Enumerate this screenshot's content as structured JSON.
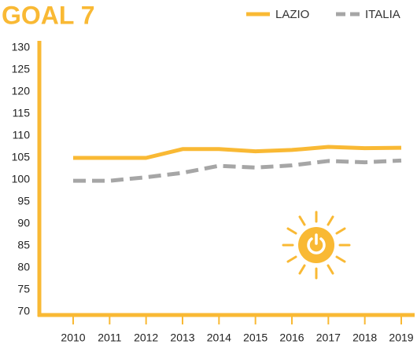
{
  "chart_data": {
    "type": "line",
    "title": "GOAL 7",
    "categories": [
      "2010",
      "2011",
      "2012",
      "2013",
      "2014",
      "2015",
      "2016",
      "2017",
      "2018",
      "2019"
    ],
    "series": [
      {
        "name": "LAZIO",
        "color": "#f9b934",
        "dashed": false,
        "values": [
          105,
          105,
          105,
          107,
          107,
          106.5,
          106.8,
          107.5,
          107.2,
          107.3
        ]
      },
      {
        "name": "ITALIA",
        "color": "#a6a6a6",
        "dashed": true,
        "values": [
          99.8,
          99.8,
          100.6,
          101.6,
          103.2,
          102.8,
          103.3,
          104.3,
          104,
          104.4
        ]
      }
    ],
    "ylim": [
      70,
      130
    ],
    "yticks": [
      70,
      75,
      80,
      85,
      90,
      95,
      100,
      105,
      110,
      115,
      120,
      125,
      130
    ],
    "legend": "top-right",
    "axis_color": "#f9b934"
  }
}
